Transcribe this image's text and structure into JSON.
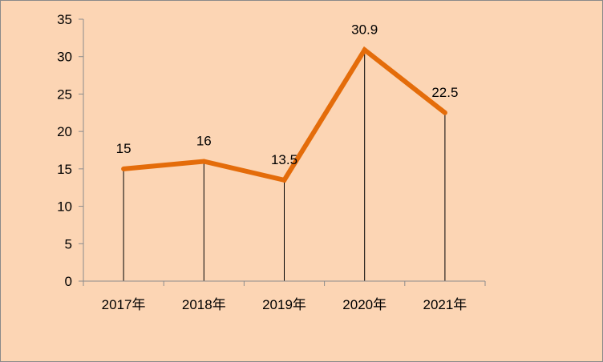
{
  "chart_data": {
    "type": "line",
    "categories": [
      "2017年",
      "2018年",
      "2019年",
      "2020年",
      "2021年"
    ],
    "values": [
      15,
      16,
      13.5,
      30.9,
      22.5
    ],
    "data_labels": [
      "15",
      "16",
      "13.5",
      "30.9",
      "22.5"
    ],
    "y_ticks": [
      "0",
      "5",
      "10",
      "15",
      "20",
      "25",
      "30",
      "35"
    ],
    "ylim": [
      0,
      35
    ],
    "y_step": 5,
    "drop_lines": true,
    "grid": false,
    "legend": "none",
    "colors": {
      "background": "#fcd5b4",
      "line": "#e46c0a",
      "axis": "#8c8c8c",
      "drop_line": "#000000"
    }
  }
}
